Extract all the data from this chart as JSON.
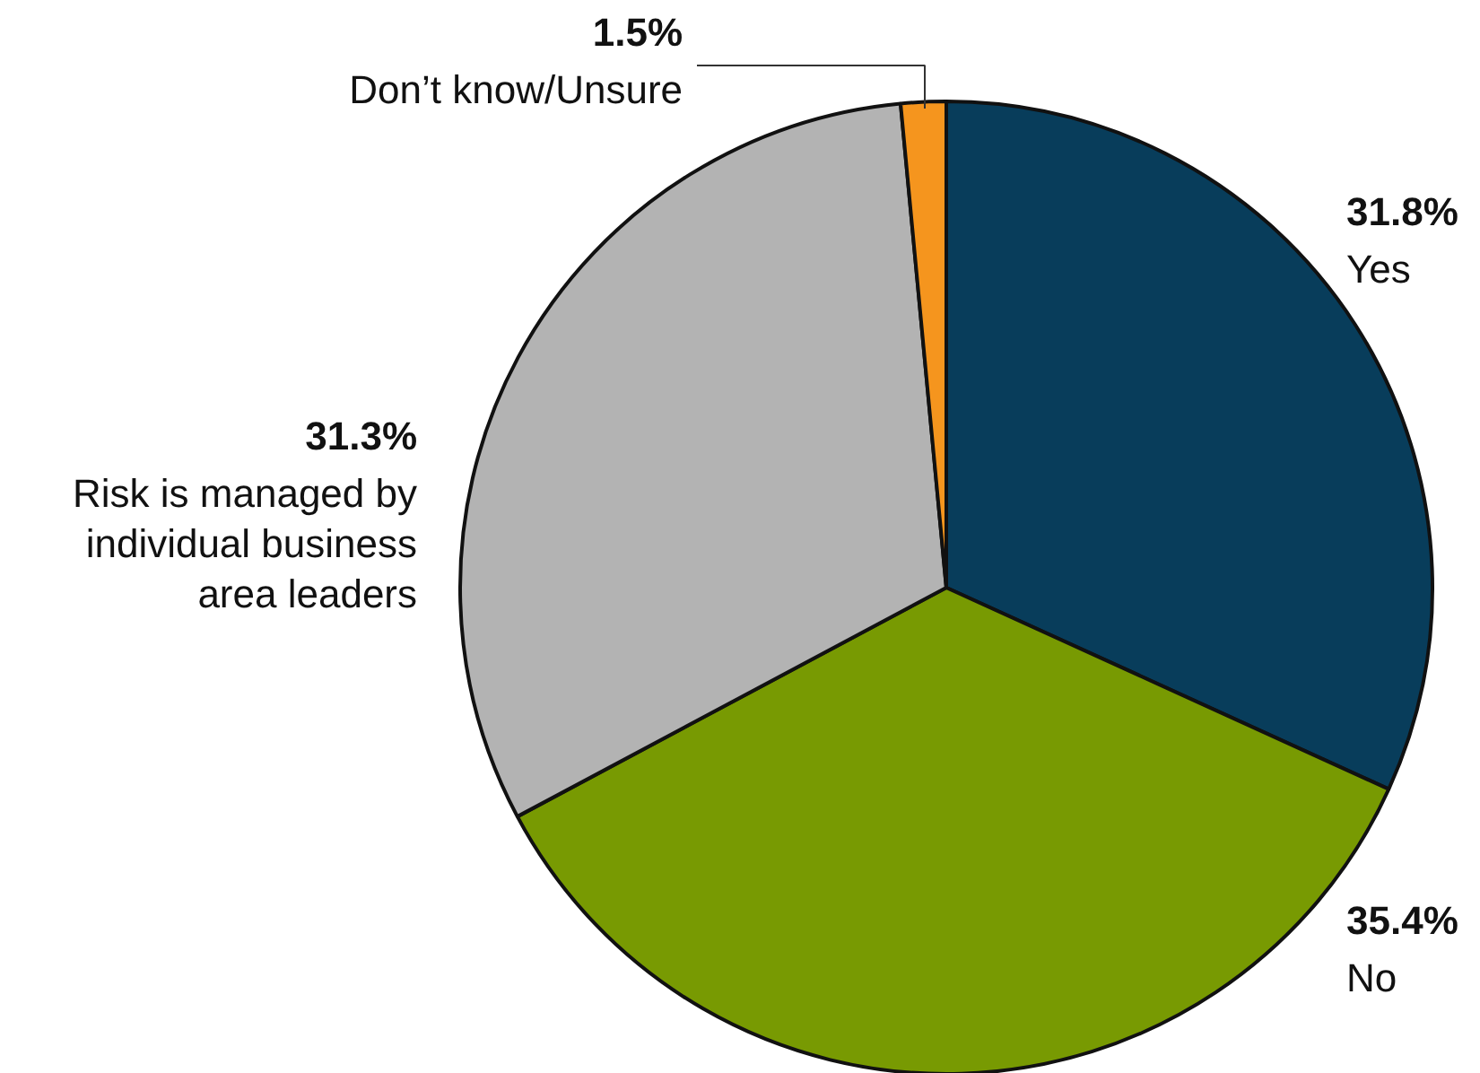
{
  "chart_data": {
    "type": "pie",
    "categories": [
      "Yes",
      "No",
      "Risk is managed by individual business area leaders",
      "Don’t know/Unsure"
    ],
    "values": [
      31.8,
      35.4,
      31.3,
      1.5
    ],
    "colors": [
      "#083d5b",
      "#789a02",
      "#b3b3b3",
      "#f5951e"
    ],
    "value_labels": [
      "31.8%",
      "35.4%",
      "31.3%",
      "1.5%"
    ]
  }
}
